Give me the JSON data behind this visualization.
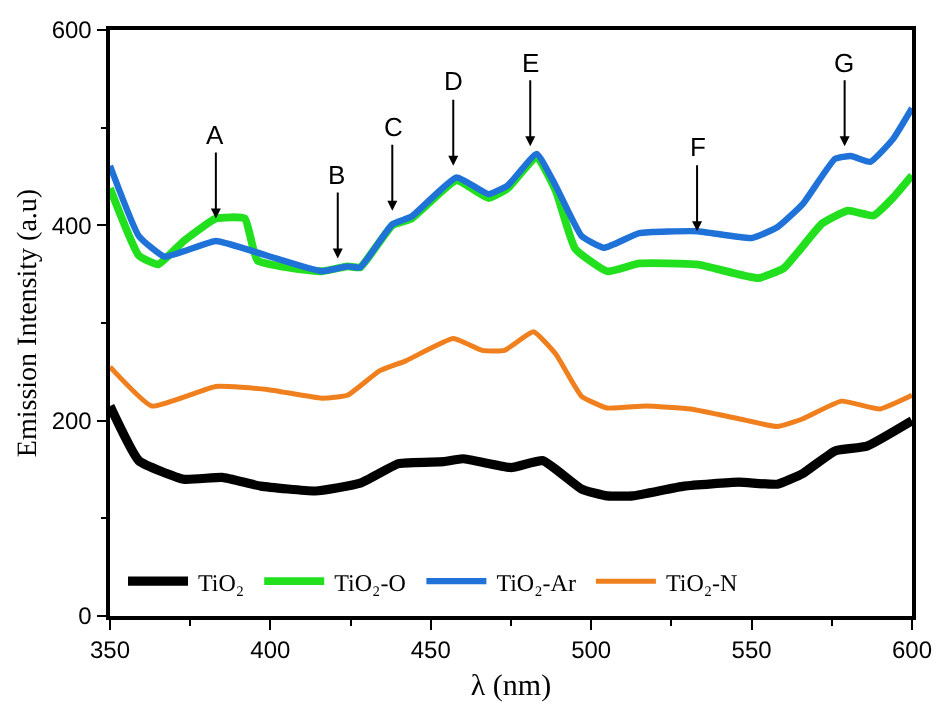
{
  "chart_data": {
    "type": "line",
    "xlabel": "λ (nm)",
    "ylabel": "Emission Intensity (a.u)",
    "xlim": [
      350,
      600
    ],
    "xticks": [
      350,
      400,
      450,
      500,
      550,
      600
    ],
    "ylim": [
      0,
      600
    ],
    "yticks": [
      0,
      200,
      400,
      600
    ],
    "legend": "bottom",
    "marker": "none",
    "line_style": "solid",
    "series": [
      {
        "name": "TiO₂",
        "color": "#000000",
        "x": [
          350,
          359,
          373,
          385,
          397,
          414,
          428,
          440,
          454,
          460,
          475,
          485,
          497,
          505,
          513,
          529,
          546,
          558,
          566,
          576,
          586,
          600
        ],
        "values": [
          215,
          159,
          140,
          142,
          133,
          128,
          136,
          156,
          158,
          161,
          152,
          159,
          130,
          123,
          123,
          133,
          137,
          135,
          146,
          169,
          174,
          200
        ]
      },
      {
        "name": "TiO₂-O",
        "color": "#22e01e",
        "x": [
          350,
          359,
          365,
          373,
          383,
          392,
          396,
          416,
          424,
          428,
          438,
          444,
          458,
          468,
          474,
          483,
          489,
          495,
          505,
          515,
          533,
          552,
          560,
          572,
          580,
          588,
          594,
          600
        ],
        "values": [
          438,
          369,
          360,
          384,
          407,
          407,
          364,
          353,
          358,
          357,
          400,
          407,
          446,
          428,
          438,
          470,
          435,
          376,
          353,
          361,
          360,
          346,
          356,
          402,
          415,
          410,
          428,
          451
        ]
      },
      {
        "name": "TiO₂-Ar",
        "color": "#1f72d8",
        "x": [
          350,
          359,
          367,
          383,
          395,
          416,
          424,
          428,
          438,
          444,
          458,
          468,
          474,
          483,
          489,
          497,
          504,
          515,
          533,
          550,
          558,
          566,
          576,
          581,
          587,
          594,
          600
        ],
        "values": [
          461,
          389,
          368,
          384,
          373,
          353,
          358,
          357,
          401,
          409,
          449,
          432,
          441,
          473,
          440,
          389,
          377,
          392,
          394,
          387,
          398,
          422,
          468,
          471,
          465,
          488,
          520
        ]
      },
      {
        "name": "TiO₂-N",
        "color": "#f07f1e",
        "x": [
          350,
          363,
          383,
          399,
          416,
          424,
          434,
          442,
          457,
          466,
          473,
          482,
          489,
          497,
          505,
          517,
          531,
          546,
          558,
          566,
          578,
          590,
          600
        ],
        "values": [
          255,
          215,
          235,
          232,
          223,
          226,
          251,
          261,
          284,
          272,
          272,
          291,
          268,
          225,
          213,
          215,
          212,
          202,
          194,
          202,
          220,
          212,
          226
        ]
      }
    ],
    "annotations": [
      {
        "text": "A",
        "x": 383,
        "y": 407
      },
      {
        "text": "B",
        "x": 421,
        "y": 366
      },
      {
        "text": "C",
        "x": 438,
        "y": 415
      },
      {
        "text": "D",
        "x": 457,
        "y": 461
      },
      {
        "text": "E",
        "x": 481,
        "y": 481
      },
      {
        "text": "F",
        "x": 533,
        "y": 394
      },
      {
        "text": "G",
        "x": 579,
        "y": 481
      }
    ]
  }
}
